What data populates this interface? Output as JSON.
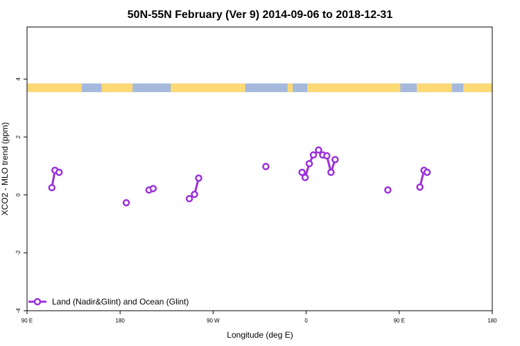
{
  "chart_data": {
    "type": "line",
    "title": "50N-55N February (Ver 9)   2014-09-06 to 2018-12-31",
    "xlabel": "Longitude (deg E)",
    "ylabel": "XCO2 - MLO trend (ppm)",
    "xlim": [
      90,
      540
    ],
    "ylim": [
      -4,
      5.8
    ],
    "x_ticks": [
      {
        "value": 90,
        "label": "90 E"
      },
      {
        "value": 180,
        "label": "180"
      },
      {
        "value": 270,
        "label": "90 W"
      },
      {
        "value": 360,
        "label": "0"
      },
      {
        "value": 450,
        "label": "90 E"
      },
      {
        "value": 540,
        "label": "180"
      }
    ],
    "y_ticks": [
      {
        "value": -4,
        "label": "-4"
      },
      {
        "value": -2,
        "label": "-2"
      },
      {
        "value": 0,
        "label": "0"
      },
      {
        "value": 2,
        "label": "2"
      },
      {
        "value": 4,
        "label": "4"
      }
    ],
    "grid": false,
    "legend_position": "bottom-left",
    "series": [
      {
        "name": "Land (Nadir&Glint) and Ocean (Glint)",
        "color": "#9b30d9",
        "segments": [
          [
            [
              114,
              0.25
            ],
            [
              117,
              0.85
            ],
            [
              121,
              0.78
            ]
          ],
          [
            [
              186,
              -0.27
            ]
          ],
          [
            [
              208,
              0.17
            ],
            [
              212,
              0.22
            ]
          ],
          [
            [
              247,
              -0.13
            ],
            [
              252,
              0.02
            ],
            [
              256,
              0.58
            ]
          ],
          [
            [
              321,
              0.98
            ]
          ],
          [
            [
              356,
              0.78
            ],
            [
              359,
              0.6
            ],
            [
              363,
              1.08
            ],
            [
              367,
              1.38
            ],
            [
              372,
              1.55
            ],
            [
              376,
              1.38
            ],
            [
              380,
              1.35
            ],
            [
              384,
              0.78
            ],
            [
              388,
              1.22
            ]
          ],
          [
            [
              439,
              0.17
            ]
          ],
          [
            [
              470,
              0.27
            ],
            [
              474,
              0.85
            ],
            [
              477,
              0.78
            ]
          ]
        ]
      }
    ],
    "surface_strip": {
      "y_range": [
        3.55,
        3.85
      ],
      "land_color": "#fdd976",
      "ocean_color": "#a4b9dc",
      "land_intervals": [
        [
          90,
          143
        ],
        [
          162,
          192
        ],
        [
          229,
          301
        ],
        [
          342,
          347
        ],
        [
          361,
          451
        ],
        [
          467,
          501
        ],
        [
          512,
          540
        ]
      ]
    }
  }
}
